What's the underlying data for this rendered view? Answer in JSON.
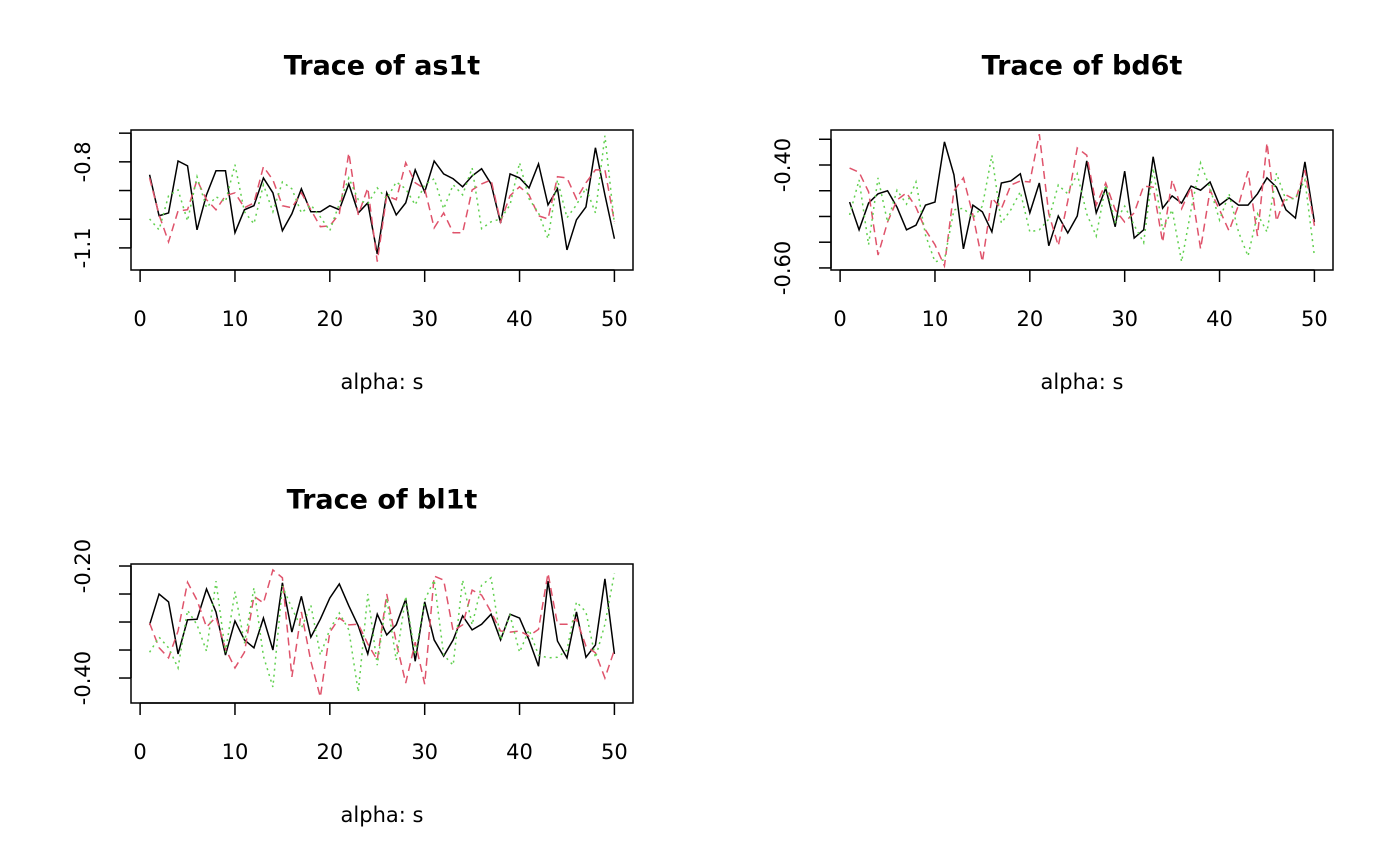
{
  "chart_data": [
    {
      "type": "line",
      "title": "Trace of as1t",
      "xlabel": "alpha: s",
      "x": [
        1,
        2,
        3,
        4,
        5,
        6,
        7,
        8,
        9,
        10,
        11,
        12,
        13,
        14,
        15,
        16,
        17,
        18,
        19,
        20,
        21,
        22,
        23,
        24,
        25,
        26,
        27,
        28,
        29,
        30,
        31,
        32,
        33,
        34,
        35,
        36,
        37,
        38,
        39,
        40,
        41,
        42,
        43,
        44,
        45,
        46,
        47,
        48,
        49,
        50
      ],
      "xlim": [
        -0.96,
        51.96
      ],
      "xticks": [
        0,
        10,
        20,
        30,
        40,
        50
      ],
      "ylim": [
        -1.177,
        -0.689
      ],
      "yticks": [
        -1.1,
        -1.0,
        -0.9,
        -0.8,
        -0.7
      ],
      "ytick_labels": [
        -1.1,
        -0.8
      ],
      "series": [
        {
          "color": "#000000",
          "dash": "solid",
          "values": [
            -0.845,
            -0.988,
            -0.978,
            -0.797,
            -0.814,
            -1.037,
            -0.915,
            -0.831,
            -0.831,
            -1.047,
            -0.967,
            -0.953,
            -0.856,
            -0.908,
            -1.04,
            -0.981,
            -0.894,
            -0.974,
            -0.974,
            -0.953,
            -0.967,
            -0.877,
            -0.978,
            -0.943,
            -1.121,
            -0.908,
            -0.985,
            -0.943,
            -0.828,
            -0.905,
            -0.797,
            -0.842,
            -0.859,
            -0.887,
            -0.849,
            -0.824,
            -0.877,
            -1.013,
            -0.842,
            -0.856,
            -0.891,
            -0.807,
            -0.95,
            -0.894,
            -1.107,
            -1.002,
            -0.957,
            -0.751,
            -0.915,
            -1.068
          ]
        },
        {
          "color": "#DF536B",
          "dash": "dashed",
          "values": [
            -0.856,
            -0.985,
            -1.079,
            -0.971,
            -0.967,
            -0.863,
            -0.932,
            -0.967,
            -0.918,
            -0.908,
            -0.96,
            -0.943,
            -0.817,
            -0.863,
            -0.953,
            -0.96,
            -0.908,
            -0.967,
            -1.026,
            -1.023,
            -0.981,
            -0.769,
            -0.985,
            -0.891,
            -1.148,
            -0.918,
            -0.932,
            -0.803,
            -0.873,
            -0.894,
            -1.03,
            -0.978,
            -1.047,
            -1.047,
            -0.898,
            -0.877,
            -0.863,
            -1.009,
            -0.918,
            -0.887,
            -0.915,
            -0.988,
            -0.999,
            -0.852,
            -0.856,
            -0.929,
            -0.873,
            -0.828,
            -0.828,
            -1.009
          ]
        },
        {
          "color": "#61D04F",
          "dash": "dotted",
          "values": [
            -0.999,
            -1.037,
            -0.918,
            -0.898,
            -1.006,
            -0.852,
            -0.96,
            -0.922,
            -0.939,
            -0.81,
            -0.974,
            -1.016,
            -0.88,
            -0.974,
            -0.87,
            -0.894,
            -0.978,
            -0.95,
            -0.992,
            -1.04,
            -0.946,
            -0.856,
            -0.932,
            -0.946,
            -0.891,
            -0.929,
            -0.87,
            -0.894,
            -0.95,
            -0.88,
            -0.859,
            -0.964,
            -0.88,
            -0.915,
            -0.821,
            -1.033,
            -1.009,
            -0.999,
            -0.95,
            -0.803,
            -0.929,
            -0.978,
            -1.068,
            -0.863,
            -0.995,
            -0.95,
            -0.891,
            -0.978,
            -0.709,
            -1.016
          ]
        }
      ]
    },
    {
      "type": "line",
      "title": "Trace of bd6t",
      "xlabel": "alpha: s",
      "x": [
        1,
        2,
        3,
        4,
        5,
        6,
        7,
        8,
        9,
        10,
        11,
        12,
        13,
        14,
        15,
        16,
        17,
        18,
        19,
        20,
        21,
        22,
        23,
        24,
        25,
        26,
        27,
        28,
        29,
        30,
        31,
        32,
        33,
        34,
        35,
        36,
        37,
        38,
        39,
        40,
        41,
        42,
        43,
        44,
        45,
        46,
        47,
        48,
        49,
        50
      ],
      "xlim": [
        -0.96,
        51.96
      ],
      "xticks": [
        0,
        10,
        20,
        30,
        40,
        50
      ],
      "ylim": [
        -0.604,
        -0.332
      ],
      "yticks": [
        -0.6,
        -0.55,
        -0.5,
        -0.45,
        -0.4,
        -0.35
      ],
      "ytick_labels": [
        {
          "value": -0.6,
          "label": "-0.60"
        },
        {
          "value": -0.4,
          "label": "-0.40"
        }
      ],
      "series": [
        {
          "color": "#000000",
          "dash": "solid",
          "values": [
            -0.472,
            -0.526,
            -0.474,
            -0.456,
            -0.45,
            -0.482,
            -0.526,
            -0.517,
            -0.478,
            -0.472,
            -0.355,
            -0.419,
            -0.563,
            -0.478,
            -0.491,
            -0.53,
            -0.435,
            -0.431,
            -0.417,
            -0.493,
            -0.435,
            -0.557,
            -0.499,
            -0.532,
            -0.499,
            -0.392,
            -0.493,
            -0.445,
            -0.52,
            -0.412,
            -0.542,
            -0.526,
            -0.384,
            -0.484,
            -0.46,
            -0.474,
            -0.441,
            -0.449,
            -0.433,
            -0.478,
            -0.464,
            -0.478,
            -0.478,
            -0.456,
            -0.425,
            -0.443,
            -0.487,
            -0.503,
            -0.394,
            -0.511
          ]
        },
        {
          "color": "#DF536B",
          "dash": "dashed",
          "values": [
            -0.406,
            -0.414,
            -0.452,
            -0.575,
            -0.511,
            -0.468,
            -0.454,
            -0.482,
            -0.526,
            -0.555,
            -0.596,
            -0.45,
            -0.425,
            -0.497,
            -0.588,
            -0.464,
            -0.485,
            -0.439,
            -0.431,
            -0.433,
            -0.34,
            -0.495,
            -0.557,
            -0.47,
            -0.367,
            -0.381,
            -0.478,
            -0.435,
            -0.487,
            -0.511,
            -0.493,
            -0.441,
            -0.443,
            -0.55,
            -0.429,
            -0.485,
            -0.443,
            -0.563,
            -0.449,
            -0.487,
            -0.528,
            -0.478,
            -0.412,
            -0.538,
            -0.357,
            -0.509,
            -0.458,
            -0.468,
            -0.41,
            -0.518
          ]
        },
        {
          "color": "#61D04F",
          "dash": "dotted",
          "values": [
            -0.497,
            -0.429,
            -0.555,
            -0.425,
            -0.511,
            -0.449,
            -0.476,
            -0.433,
            -0.536,
            -0.588,
            -0.584,
            -0.487,
            -0.484,
            -0.503,
            -0.48,
            -0.381,
            -0.513,
            -0.487,
            -0.452,
            -0.53,
            -0.526,
            -0.505,
            -0.439,
            -0.456,
            -0.417,
            -0.495,
            -0.538,
            -0.439,
            -0.511,
            -0.48,
            -0.517,
            -0.551,
            -0.406,
            -0.526,
            -0.487,
            -0.588,
            -0.487,
            -0.396,
            -0.445,
            -0.507,
            -0.456,
            -0.53,
            -0.577,
            -0.495,
            -0.53,
            -0.416,
            -0.468,
            -0.464,
            -0.429,
            -0.577
          ]
        }
      ]
    },
    {
      "type": "line",
      "title": "Trace of bl1t",
      "xlabel": "alpha: s",
      "x": [
        1,
        2,
        3,
        4,
        5,
        6,
        7,
        8,
        9,
        10,
        11,
        12,
        13,
        14,
        15,
        16,
        17,
        18,
        19,
        20,
        21,
        22,
        23,
        24,
        25,
        26,
        27,
        28,
        29,
        30,
        31,
        32,
        33,
        34,
        35,
        36,
        37,
        38,
        39,
        40,
        41,
        42,
        43,
        44,
        45,
        46,
        47,
        48,
        49,
        50
      ],
      "xlim": [
        -0.96,
        51.96
      ],
      "xticks": [
        0,
        10,
        20,
        30,
        40,
        50
      ],
      "ylim": [
        -0.4446,
        -0.1964
      ],
      "yticks": [
        -0.4,
        -0.35,
        -0.3,
        -0.25,
        -0.2
      ],
      "ytick_labels": [
        {
          "value": -0.4,
          "label": "-0.40"
        },
        {
          "value": -0.2,
          "label": "-0.20"
        }
      ],
      "series": [
        {
          "color": "#000000",
          "dash": "solid",
          "values": [
            -0.305,
            -0.25,
            -0.264,
            -0.357,
            -0.296,
            -0.295,
            -0.241,
            -0.282,
            -0.359,
            -0.298,
            -0.332,
            -0.346,
            -0.293,
            -0.35,
            -0.23,
            -0.318,
            -0.254,
            -0.327,
            -0.295,
            -0.257,
            -0.232,
            -0.271,
            -0.307,
            -0.357,
            -0.286,
            -0.323,
            -0.305,
            -0.259,
            -0.37,
            -0.264,
            -0.332,
            -0.361,
            -0.332,
            -0.289,
            -0.314,
            -0.304,
            -0.286,
            -0.332,
            -0.286,
            -0.293,
            -0.332,
            -0.379,
            -0.227,
            -0.334,
            -0.364,
            -0.282,
            -0.363,
            -0.341,
            -0.223,
            -0.357
          ]
        },
        {
          "color": "#DF536B",
          "dash": "dashed",
          "values": [
            -0.302,
            -0.346,
            -0.364,
            -0.316,
            -0.229,
            -0.261,
            -0.309,
            -0.291,
            -0.348,
            -0.382,
            -0.354,
            -0.254,
            -0.266,
            -0.207,
            -0.221,
            -0.398,
            -0.282,
            -0.37,
            -0.434,
            -0.318,
            -0.293,
            -0.305,
            -0.304,
            -0.339,
            -0.368,
            -0.25,
            -0.336,
            -0.409,
            -0.336,
            -0.411,
            -0.218,
            -0.225,
            -0.316,
            -0.305,
            -0.243,
            -0.252,
            -0.282,
            -0.316,
            -0.318,
            -0.316,
            -0.325,
            -0.313,
            -0.213,
            -0.304,
            -0.304,
            -0.295,
            -0.343,
            -0.355,
            -0.4,
            -0.35
          ]
        },
        {
          "color": "#61D04F",
          "dash": "dotted",
          "values": [
            -0.354,
            -0.327,
            -0.346,
            -0.382,
            -0.279,
            -0.305,
            -0.352,
            -0.227,
            -0.354,
            -0.246,
            -0.338,
            -0.239,
            -0.361,
            -0.416,
            -0.236,
            -0.275,
            -0.311,
            -0.27,
            -0.359,
            -0.313,
            -0.284,
            -0.314,
            -0.425,
            -0.25,
            -0.377,
            -0.257,
            -0.368,
            -0.254,
            -0.359,
            -0.261,
            -0.225,
            -0.359,
            -0.377,
            -0.225,
            -0.305,
            -0.234,
            -0.221,
            -0.332,
            -0.288,
            -0.354,
            -0.314,
            -0.359,
            -0.364,
            -0.363,
            -0.35,
            -0.264,
            -0.282,
            -0.364,
            -0.304,
            -0.213
          ]
        }
      ]
    }
  ]
}
